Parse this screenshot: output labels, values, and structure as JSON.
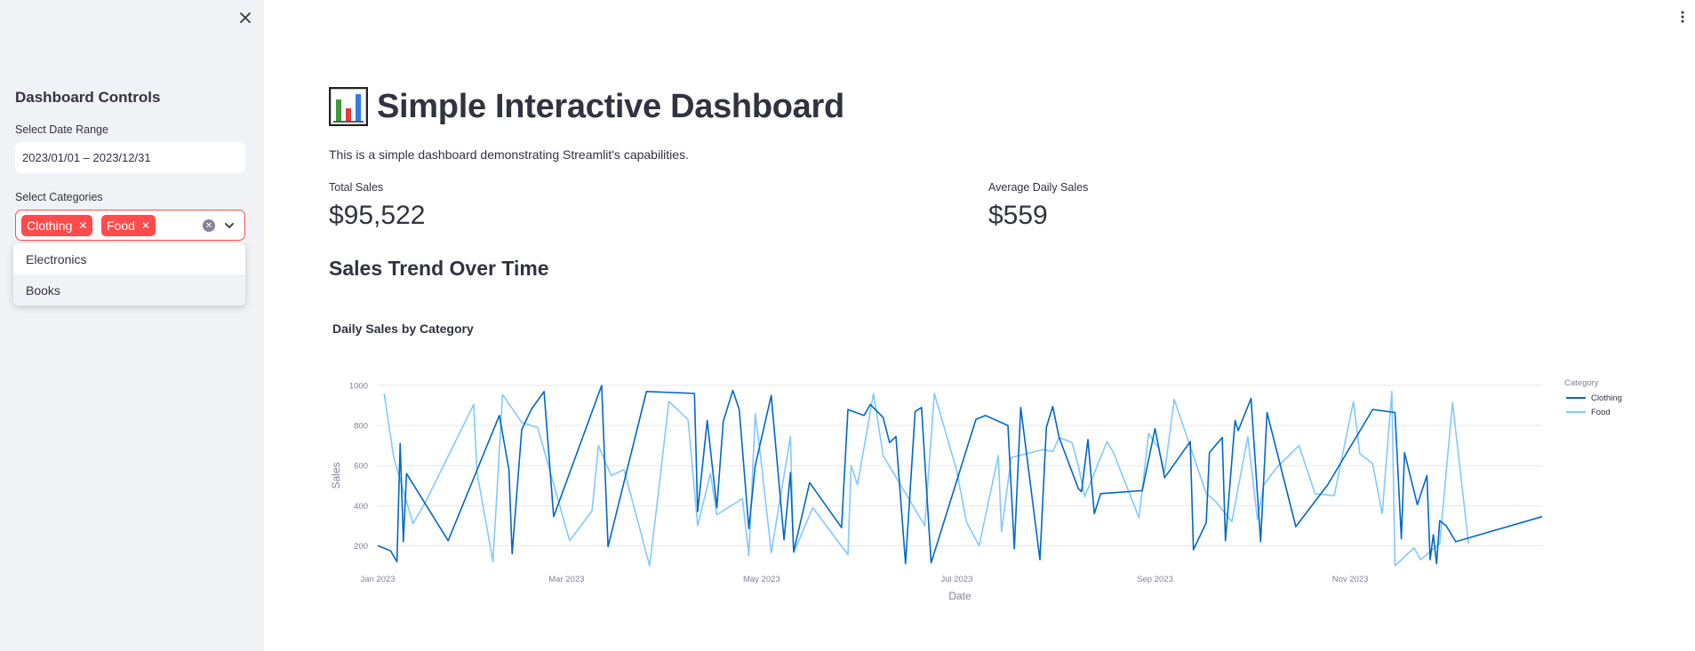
{
  "sidebar": {
    "title": "Dashboard Controls",
    "date_label": "Select Date Range",
    "date_value": "2023/01/01 – 2023/12/31",
    "categories_label": "Select Categories",
    "selected": [
      "Clothing",
      "Food"
    ],
    "options": [
      "Electronics",
      "Books"
    ]
  },
  "main": {
    "title": "Simple Interactive Dashboard",
    "description": "This is a simple dashboard demonstrating Streamlit's capabilities.",
    "metrics": [
      {
        "label": "Total Sales",
        "value": "$95,522"
      },
      {
        "label": "Average Daily Sales",
        "value": "$559"
      }
    ],
    "section_title": "Sales Trend Over Time"
  },
  "colors": {
    "accent": "#ff4b4b",
    "clothing": "#0068c9",
    "food": "#83c9ff"
  },
  "chart_data": {
    "type": "line",
    "title": "Daily Sales by Category",
    "xlabel": "Date",
    "ylabel": "Sales",
    "xlim": [
      "2023-01-01",
      "2023-12-31"
    ],
    "ylim": [
      100,
      1000
    ],
    "x_ticks": [
      {
        "date": "2023-01-01",
        "label": "Jan 2023"
      },
      {
        "date": "2023-03-01",
        "label": "Mar 2023"
      },
      {
        "date": "2023-05-01",
        "label": "May 2023"
      },
      {
        "date": "2023-07-01",
        "label": "Jul 2023"
      },
      {
        "date": "2023-09-01",
        "label": "Sep 2023"
      },
      {
        "date": "2023-11-01",
        "label": "Nov 2023"
      }
    ],
    "y_ticks": [
      200,
      400,
      600,
      800,
      1000
    ],
    "grid": true,
    "legend": {
      "title": "Category",
      "position": "right"
    },
    "series": [
      {
        "name": "Clothing",
        "points": [
          [
            "2023-01-01",
            200
          ],
          [
            "2023-01-05",
            175
          ],
          [
            "2023-01-07",
            120
          ],
          [
            "2023-01-08",
            710
          ],
          [
            "2023-01-09",
            220
          ],
          [
            "2023-01-10",
            560
          ],
          [
            "2023-01-23",
            225
          ],
          [
            "2023-02-08",
            850
          ],
          [
            "2023-02-11",
            580
          ],
          [
            "2023-02-12",
            160
          ],
          [
            "2023-02-15",
            780
          ],
          [
            "2023-02-18",
            880
          ],
          [
            "2023-02-22",
            970
          ],
          [
            "2023-02-25",
            345
          ],
          [
            "2023-03-12",
            1000
          ],
          [
            "2023-03-14",
            195
          ],
          [
            "2023-03-26",
            970
          ],
          [
            "2023-04-10",
            960
          ],
          [
            "2023-04-11",
            370
          ],
          [
            "2023-04-14",
            825
          ],
          [
            "2023-04-17",
            390
          ],
          [
            "2023-04-19",
            820
          ],
          [
            "2023-04-22",
            975
          ],
          [
            "2023-04-24",
            880
          ],
          [
            "2023-04-27",
            285
          ],
          [
            "2023-04-29",
            600
          ],
          [
            "2023-05-04",
            950
          ],
          [
            "2023-05-08",
            230
          ],
          [
            "2023-05-10",
            565
          ],
          [
            "2023-05-11",
            170
          ],
          [
            "2023-05-16",
            515
          ],
          [
            "2023-05-26",
            290
          ],
          [
            "2023-05-28",
            880
          ],
          [
            "2023-06-02",
            850
          ],
          [
            "2023-06-04",
            905
          ],
          [
            "2023-06-08",
            840
          ],
          [
            "2023-06-10",
            715
          ],
          [
            "2023-06-12",
            745
          ],
          [
            "2023-06-15",
            110
          ],
          [
            "2023-06-18",
            870
          ],
          [
            "2023-06-20",
            890
          ],
          [
            "2023-06-22",
            370
          ],
          [
            "2023-06-23",
            115
          ],
          [
            "2023-07-07",
            830
          ],
          [
            "2023-07-10",
            850
          ],
          [
            "2023-07-17",
            800
          ],
          [
            "2023-07-19",
            185
          ],
          [
            "2023-07-21",
            890
          ],
          [
            "2023-07-27",
            130
          ],
          [
            "2023-07-29",
            790
          ],
          [
            "2023-07-31",
            895
          ],
          [
            "2023-08-02",
            740
          ],
          [
            "2023-08-08",
            485
          ],
          [
            "2023-08-09",
            470
          ],
          [
            "2023-08-11",
            730
          ],
          [
            "2023-08-13",
            360
          ],
          [
            "2023-08-15",
            460
          ],
          [
            "2023-08-28",
            475
          ],
          [
            "2023-09-01",
            785
          ],
          [
            "2023-09-04",
            540
          ],
          [
            "2023-09-12",
            720
          ],
          [
            "2023-09-13",
            180
          ],
          [
            "2023-09-17",
            315
          ],
          [
            "2023-09-18",
            665
          ],
          [
            "2023-09-22",
            740
          ],
          [
            "2023-09-23",
            225
          ],
          [
            "2023-09-26",
            825
          ],
          [
            "2023-09-27",
            775
          ],
          [
            "2023-10-01",
            935
          ],
          [
            "2023-10-04",
            220
          ],
          [
            "2023-10-06",
            865
          ],
          [
            "2023-10-15",
            295
          ],
          [
            "2023-10-25",
            505
          ],
          [
            "2023-11-08",
            880
          ],
          [
            "2023-11-15",
            865
          ],
          [
            "2023-11-17",
            235
          ],
          [
            "2023-11-18",
            665
          ],
          [
            "2023-11-22",
            405
          ],
          [
            "2023-11-25",
            550
          ],
          [
            "2023-11-26",
            130
          ],
          [
            "2023-11-27",
            255
          ],
          [
            "2023-11-28",
            110
          ],
          [
            "2023-11-29",
            325
          ],
          [
            "2023-12-01",
            300
          ],
          [
            "2023-12-04",
            220
          ],
          [
            "2023-12-31",
            345
          ]
        ]
      },
      {
        "name": "Food",
        "points": [
          [
            "2023-01-03",
            960
          ],
          [
            "2023-01-06",
            640
          ],
          [
            "2023-01-12",
            310
          ],
          [
            "2023-01-16",
            420
          ],
          [
            "2023-01-31",
            905
          ],
          [
            "2023-02-01",
            570
          ],
          [
            "2023-02-06",
            120
          ],
          [
            "2023-02-09",
            955
          ],
          [
            "2023-02-15",
            815
          ],
          [
            "2023-02-20",
            790
          ],
          [
            "2023-03-02",
            225
          ],
          [
            "2023-03-09",
            375
          ],
          [
            "2023-03-11",
            700
          ],
          [
            "2023-03-15",
            550
          ],
          [
            "2023-03-19",
            580
          ],
          [
            "2023-03-27",
            100
          ],
          [
            "2023-03-30",
            500
          ],
          [
            "2023-04-02",
            920
          ],
          [
            "2023-04-08",
            830
          ],
          [
            "2023-04-11",
            300
          ],
          [
            "2023-04-15",
            560
          ],
          [
            "2023-04-17",
            355
          ],
          [
            "2023-04-25",
            435
          ],
          [
            "2023-04-27",
            150
          ],
          [
            "2023-04-29",
            860
          ],
          [
            "2023-05-01",
            600
          ],
          [
            "2023-05-04",
            165
          ],
          [
            "2023-05-10",
            745
          ],
          [
            "2023-05-11",
            165
          ],
          [
            "2023-05-17",
            390
          ],
          [
            "2023-05-28",
            155
          ],
          [
            "2023-05-29",
            600
          ],
          [
            "2023-05-31",
            505
          ],
          [
            "2023-06-05",
            960
          ],
          [
            "2023-06-08",
            650
          ],
          [
            "2023-06-21",
            300
          ],
          [
            "2023-06-24",
            960
          ],
          [
            "2023-07-01",
            575
          ],
          [
            "2023-07-04",
            320
          ],
          [
            "2023-07-08",
            200
          ],
          [
            "2023-07-14",
            650
          ],
          [
            "2023-07-15",
            270
          ],
          [
            "2023-07-18",
            640
          ],
          [
            "2023-07-28",
            680
          ],
          [
            "2023-07-31",
            670
          ],
          [
            "2023-08-02",
            740
          ],
          [
            "2023-08-06",
            715
          ],
          [
            "2023-08-08",
            600
          ],
          [
            "2023-08-10",
            445
          ],
          [
            "2023-08-17",
            720
          ],
          [
            "2023-08-19",
            665
          ],
          [
            "2023-08-27",
            340
          ],
          [
            "2023-08-30",
            760
          ],
          [
            "2023-09-02",
            690
          ],
          [
            "2023-09-04",
            565
          ],
          [
            "2023-09-07",
            930
          ],
          [
            "2023-09-17",
            460
          ],
          [
            "2023-09-20",
            420
          ],
          [
            "2023-09-25",
            320
          ],
          [
            "2023-09-30",
            745
          ],
          [
            "2023-10-03",
            330
          ],
          [
            "2023-10-05",
            505
          ],
          [
            "2023-10-09",
            590
          ],
          [
            "2023-10-16",
            700
          ],
          [
            "2023-10-21",
            460
          ],
          [
            "2023-10-27",
            450
          ],
          [
            "2023-11-02",
            920
          ],
          [
            "2023-11-04",
            660
          ],
          [
            "2023-11-08",
            610
          ],
          [
            "2023-11-11",
            360
          ],
          [
            "2023-11-14",
            970
          ],
          [
            "2023-11-15",
            100
          ],
          [
            "2023-11-19",
            160
          ],
          [
            "2023-11-21",
            190
          ],
          [
            "2023-11-23",
            130
          ],
          [
            "2023-11-29",
            210
          ],
          [
            "2023-12-03",
            915
          ],
          [
            "2023-12-08",
            210
          ]
        ]
      }
    ]
  }
}
